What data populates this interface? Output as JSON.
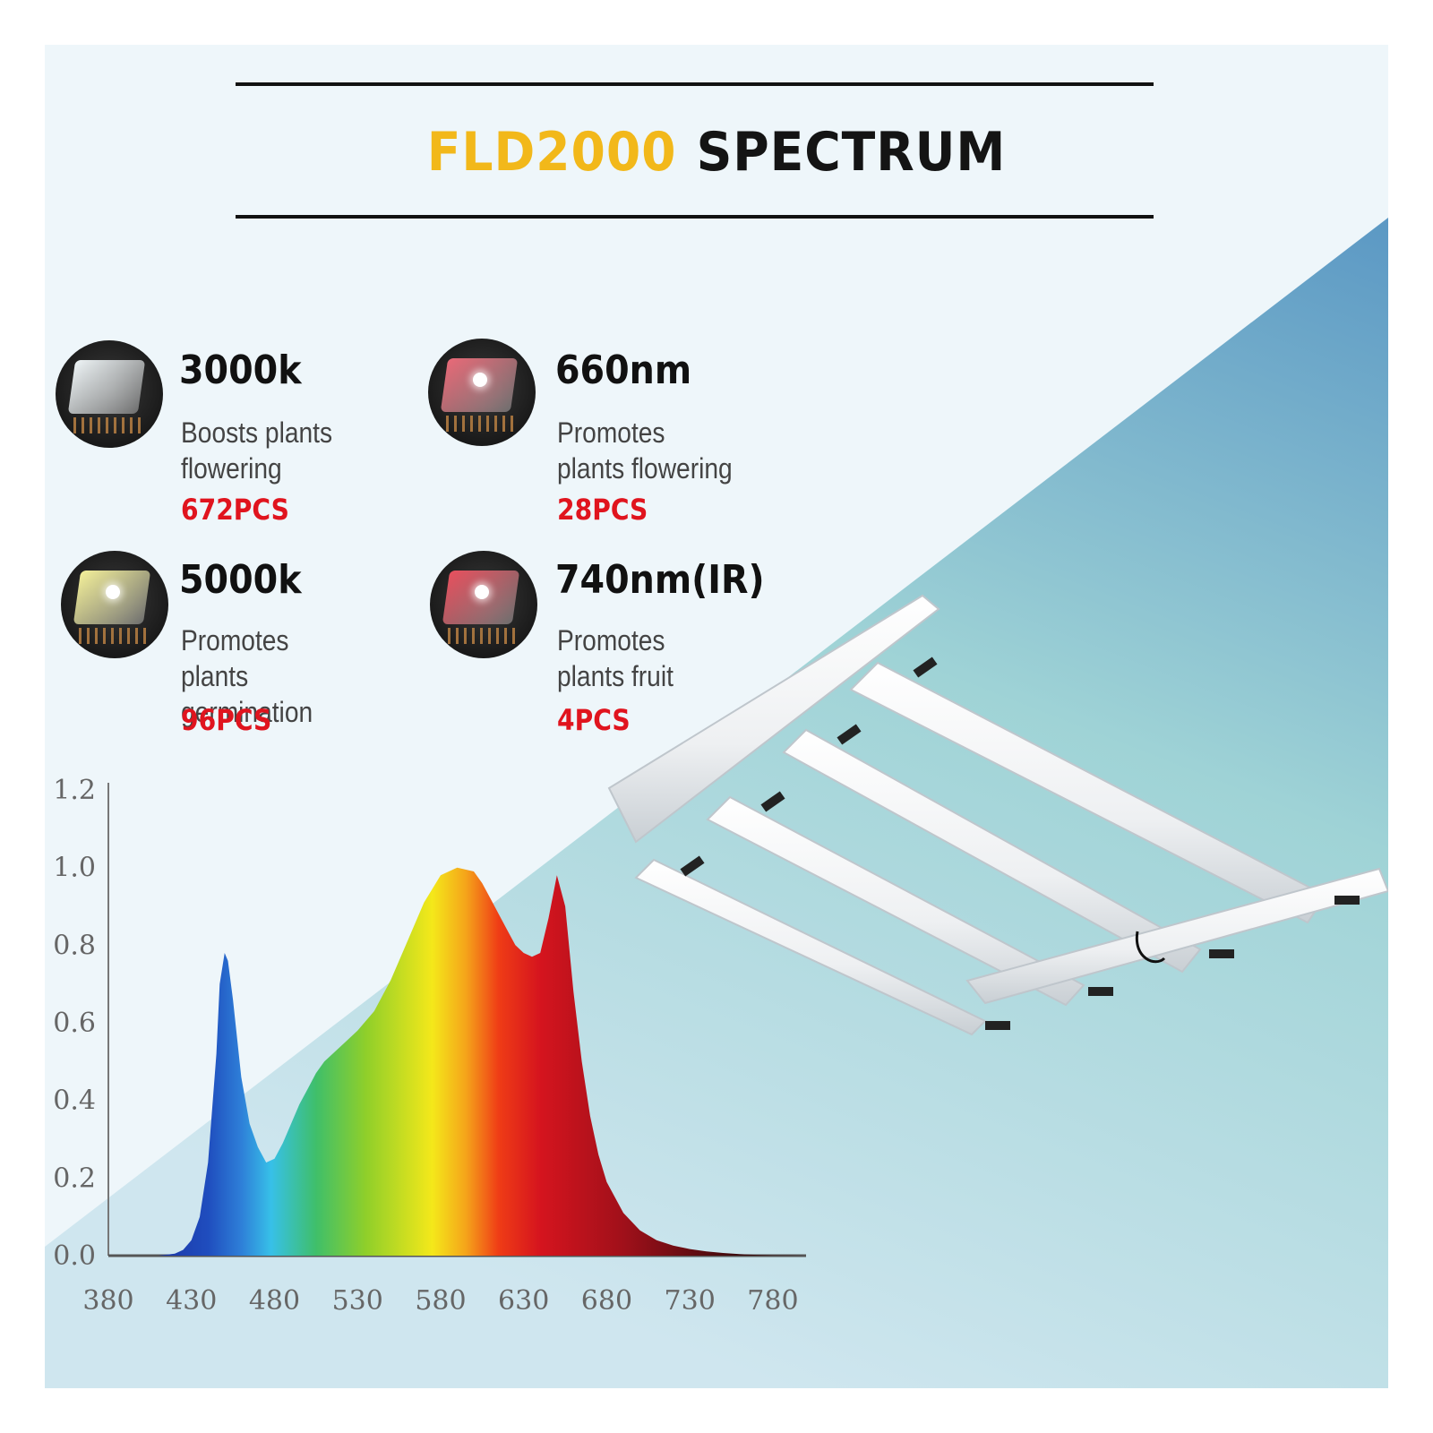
{
  "title": {
    "part1": "FLD2000",
    "part2": "SPECTRUM"
  },
  "colors": {
    "accent_yellow": "#f2b81a",
    "pcs_red": "#e0141e",
    "bg_light": "#eef6fa",
    "bg_blue": "#5b98c4",
    "bg_teal": "#9fd3d6"
  },
  "features": [
    {
      "title": "3000k",
      "desc": "Boosts plants flowering",
      "pcs": "672PCS",
      "chip_color": "#eef4f6",
      "dot_color": "#ffffff"
    },
    {
      "title": "660nm",
      "desc": "Promotes plants flowering",
      "pcs": "28PCS",
      "chip_color": "#e96a78",
      "dot_color": "#ffffff"
    },
    {
      "title": "5000k",
      "desc": "Promotes plants germination",
      "pcs": "96PCS",
      "chip_color": "#f4f09a",
      "dot_color": "#ffffff"
    },
    {
      "title": "740nm(IR)",
      "desc": "Promotes plants fruit",
      "pcs": "4PCS",
      "chip_color": "#e8505e",
      "dot_color": "#ffffff"
    }
  ],
  "product_image": {
    "icon": "led-grow-light-fixture-icon"
  },
  "chart_data": {
    "type": "area",
    "title": "",
    "xlabel": "",
    "ylabel": "",
    "xlim": [
      380,
      800
    ],
    "ylim": [
      0,
      1.2
    ],
    "x_ticks": [
      "380",
      "430",
      "480",
      "530",
      "580",
      "630",
      "680",
      "730",
      "780"
    ],
    "y_ticks": [
      "0.0",
      "0.2",
      "0.4",
      "0.6",
      "0.8",
      "1.0",
      "1.2"
    ],
    "grid": false,
    "fill": "visible-spectrum gradient",
    "series": [
      {
        "x": [
          380,
          410,
          420,
          425,
          430,
          435,
          440,
          445,
          447,
          450,
          452,
          455,
          460,
          465,
          470,
          475,
          480,
          485,
          490,
          495,
          500,
          505,
          510,
          520,
          530,
          540,
          550,
          560,
          570,
          580,
          590,
          600,
          605,
          610,
          615,
          620,
          625,
          630,
          635,
          640,
          645,
          650,
          655,
          660,
          665,
          670,
          675,
          680,
          690,
          700,
          710,
          720,
          730,
          740,
          750,
          760,
          770,
          780,
          790,
          800
        ],
        "y": [
          0,
          0,
          0.005,
          0.015,
          0.04,
          0.1,
          0.24,
          0.52,
          0.7,
          0.78,
          0.76,
          0.66,
          0.46,
          0.34,
          0.28,
          0.24,
          0.25,
          0.29,
          0.34,
          0.39,
          0.43,
          0.47,
          0.5,
          0.54,
          0.58,
          0.63,
          0.71,
          0.81,
          0.91,
          0.98,
          1.0,
          0.99,
          0.96,
          0.92,
          0.88,
          0.84,
          0.8,
          0.78,
          0.77,
          0.78,
          0.87,
          0.98,
          0.9,
          0.68,
          0.5,
          0.36,
          0.26,
          0.19,
          0.11,
          0.065,
          0.04,
          0.026,
          0.017,
          0.011,
          0.007,
          0.004,
          0.002,
          0.001,
          0.0005,
          0
        ]
      }
    ]
  }
}
